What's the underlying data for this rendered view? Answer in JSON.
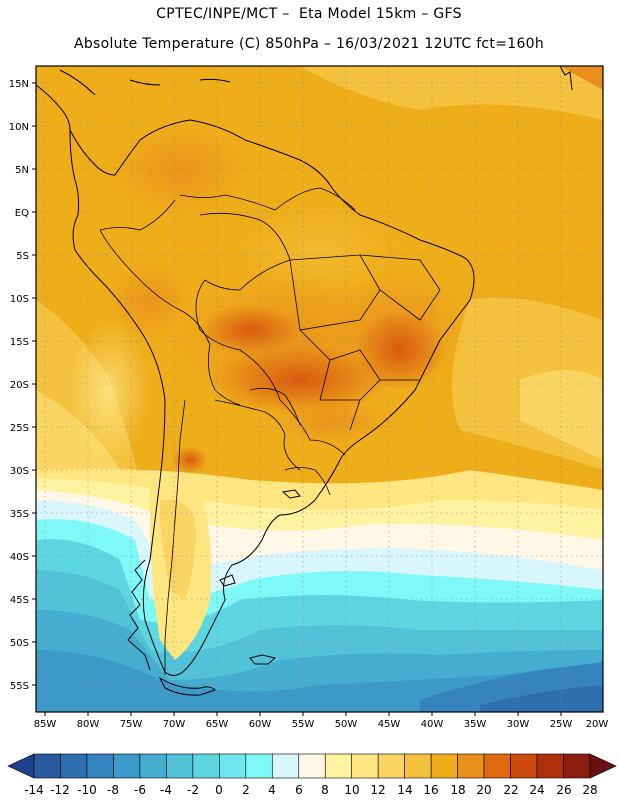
{
  "header": {
    "line1": "CPTEC/INPE/MCT –  Eta Model 15km – GFS",
    "line2": "Absolute Temperature (C) 850hPa – 16/03/2021 12UTC fct=160h"
  },
  "map": {
    "latitude_labels": [
      "15N",
      "10N",
      "5N",
      "EQ",
      "5S",
      "10S",
      "15S",
      "20S",
      "25S",
      "30S",
      "35S",
      "40S",
      "45S",
      "50S",
      "55S"
    ],
    "longitude_labels": [
      "85W",
      "80W",
      "75W",
      "70W",
      "65W",
      "60W",
      "55W",
      "50W",
      "45W",
      "40W",
      "35W",
      "30W",
      "25W",
      "20W"
    ]
  },
  "colorbar": {
    "labels": [
      "-14",
      "-12",
      "-10",
      "-8",
      "-6",
      "-4",
      "-2",
      "0",
      "2",
      "4",
      "6",
      "8",
      "10",
      "12",
      "14",
      "16",
      "18",
      "20",
      "22",
      "24",
      "26",
      "28"
    ],
    "colors": [
      "#1f3f8f",
      "#2a5aa0",
      "#2f6fb0",
      "#3584bf",
      "#3c99c8",
      "#45aed0",
      "#52c2d8",
      "#5ed6e2",
      "#6ee8ee",
      "#7ff8f8",
      "#d8f6fc",
      "#fff8e6",
      "#fff2a0",
      "#ffe680",
      "#fbd563",
      "#f5c23f",
      "#f0ad1a",
      "#e9901c",
      "#e06a10",
      "#cc4a0c",
      "#b0300c",
      "#8c1c10",
      "#6a1010"
    ]
  }
}
